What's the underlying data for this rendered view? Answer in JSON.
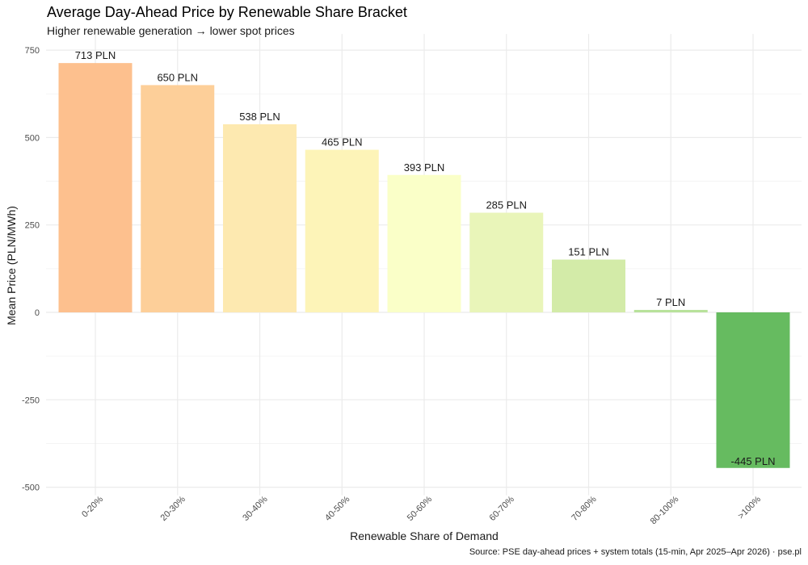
{
  "chart_data": {
    "type": "bar",
    "title": "Average Day-Ahead Price by Renewable Share Bracket",
    "subtitle": "Higher renewable generation → lower spot prices",
    "xlabel": "Renewable Share of Demand",
    "ylabel": "Mean Price (PLN/MWh)",
    "caption": "Source: PSE day-ahead prices + system totals (15-min, Apr 2025–Apr 2026) · pse.pl",
    "categories": [
      "0-20%",
      "20-30%",
      "30-40%",
      "40-50%",
      "50-60%",
      "60-70%",
      "70-80%",
      "80-100%",
      ">100%"
    ],
    "values": [
      713,
      650,
      538,
      465,
      393,
      285,
      151,
      7,
      -445
    ],
    "data_labels": [
      "713 PLN",
      "650 PLN",
      "538 PLN",
      "465 PLN",
      "393 PLN",
      "285 PLN",
      "151 PLN",
      "7 PLN",
      "-445 PLN"
    ],
    "bar_colors": [
      "#fdc08e",
      "#fdcf99",
      "#fde9b0",
      "#fdf4b8",
      "#faffc8",
      "#e9f5b9",
      "#d3eba8",
      "#b8e29b",
      "#66bb60"
    ],
    "ylim": [
      -500,
      750
    ],
    "yticks": [
      -500,
      -250,
      0,
      250,
      500,
      750
    ],
    "ytick_labels": [
      "-500",
      "-250",
      "0",
      "250",
      "500",
      "750"
    ],
    "grid": true,
    "legend": "none"
  }
}
